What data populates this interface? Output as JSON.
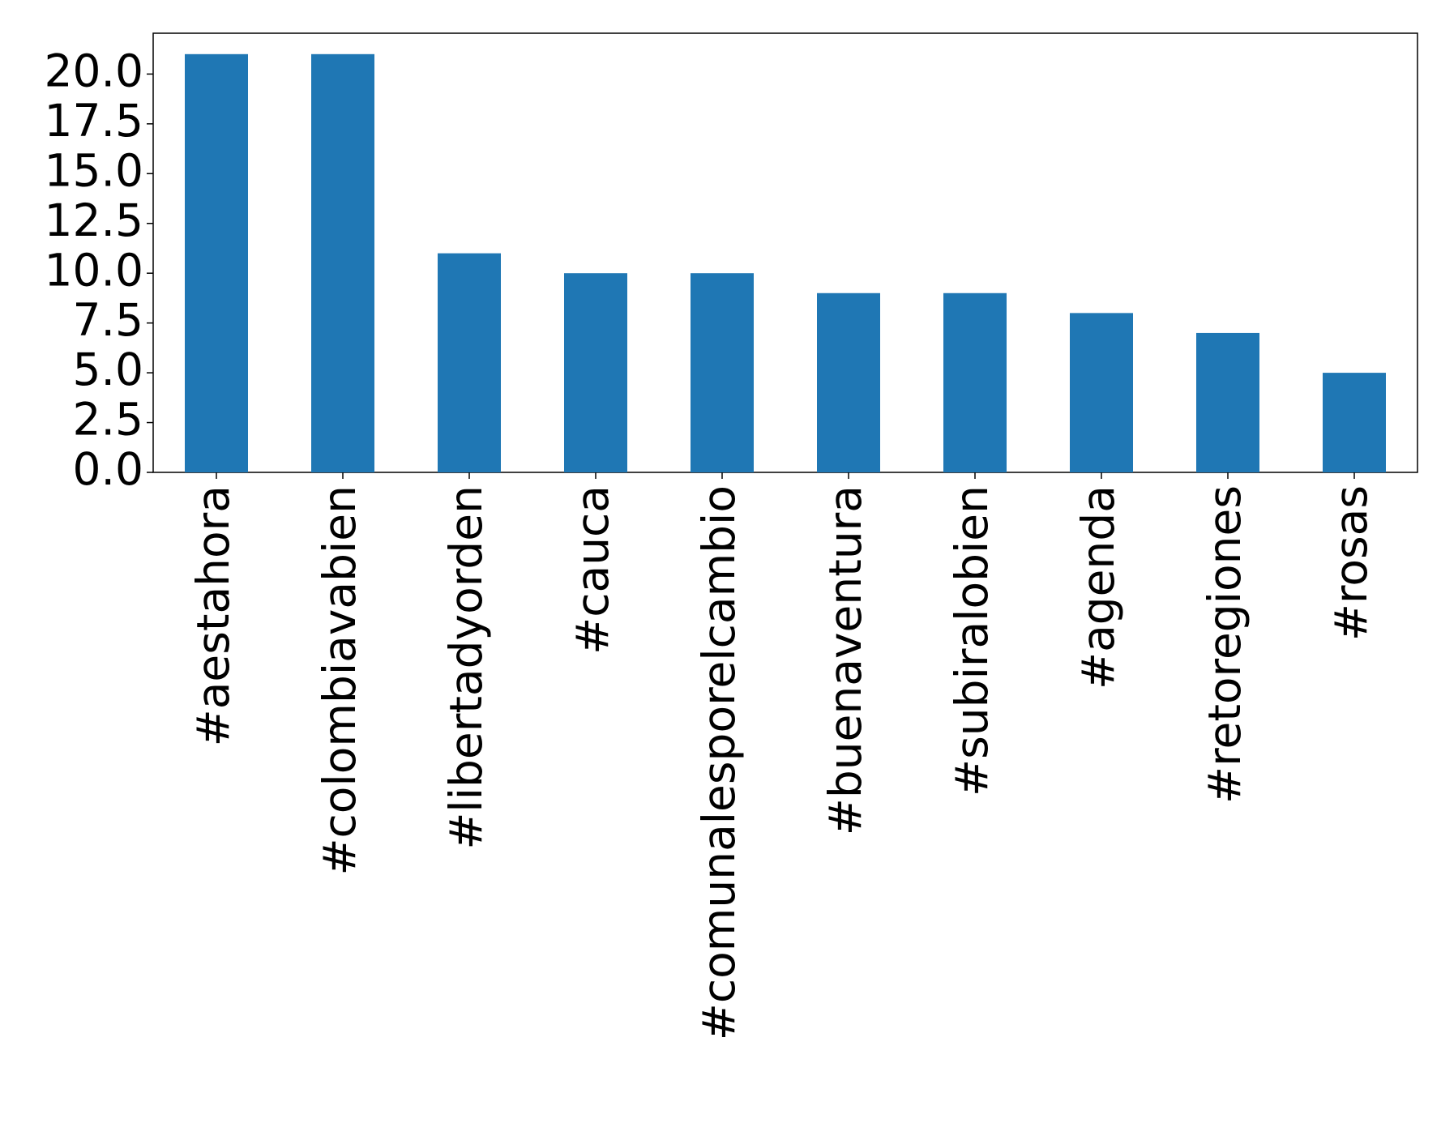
{
  "chart_data": {
    "type": "bar",
    "categories": [
      "#aestahora",
      "#colombiavabien",
      "#libertadyorden",
      "#cauca",
      "#comunalesporelcambio",
      "#buenaventura",
      "#subiralobien",
      "#agenda",
      "#retoregiones",
      "#rosas"
    ],
    "values": [
      21,
      21,
      11,
      10,
      10,
      9,
      9,
      8,
      7,
      5
    ],
    "color": "#1f77b4",
    "ylim": [
      0,
      22.05
    ],
    "yticks": [
      {
        "value": 0,
        "label": "0.0"
      },
      2.5,
      {
        "value": 5,
        "label": "5.0"
      },
      7.5,
      {
        "value": 10,
        "label": "10.0"
      },
      12.5,
      {
        "value": 15,
        "label": "15.0"
      },
      17.5,
      {
        "value": 20,
        "label": "20.0"
      }
    ],
    "grid": false
  }
}
